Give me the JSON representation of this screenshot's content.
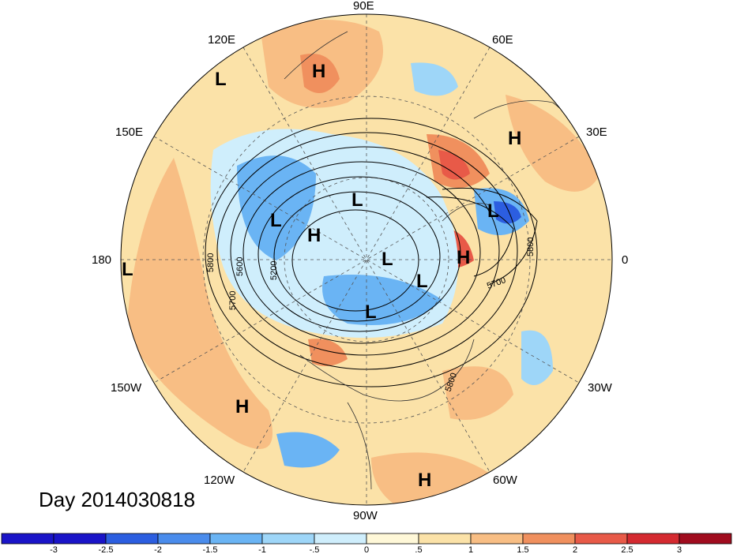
{
  "title": "Day 2014030818",
  "longitude_labels": [
    "90E",
    "120E",
    "60E",
    "150E",
    "30E",
    "180",
    "0",
    "150W",
    "30W",
    "120W",
    "60W",
    "90W"
  ],
  "contour_labels": [
    "5800",
    "5600",
    "5200",
    "5700",
    "5800",
    "5700",
    "5800"
  ],
  "pressure_centers": [
    "L",
    "H",
    "H",
    "L",
    "L",
    "H",
    "L",
    "L",
    "H",
    "L",
    "L",
    "L",
    "H",
    "H",
    "H"
  ],
  "colorbar": {
    "colors": [
      "#1a14c8",
      "#2c5ee0",
      "#4a8cec",
      "#6ab4f4",
      "#9ed6f8",
      "#cfeefc",
      "#fff8d8",
      "#fbe2a8",
      "#f8be84",
      "#f0905e",
      "#e85a48",
      "#d42a30",
      "#a00c1e"
    ],
    "ticks": [
      "-3",
      "-2.5",
      "-2",
      "-1.5",
      "-1",
      "-.5",
      "0",
      ".5",
      "1",
      "1.5",
      "2",
      "2.5",
      "3"
    ]
  }
}
